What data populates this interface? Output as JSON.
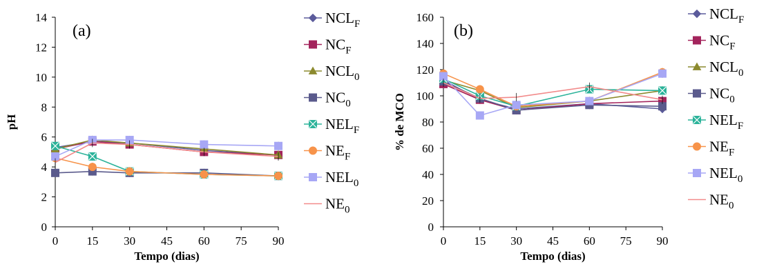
{
  "colors": {
    "NCLF": "#5b5b9b",
    "NCF": "#a3245c",
    "NCL0": "#8c8a2e",
    "NC0": "#5a5a8c",
    "NELF": "#2bb39a",
    "NEF": "#f7934a",
    "NEL0": "#a7a7f5",
    "NE0": "#f28a8a"
  },
  "chart_data": [
    {
      "type": "line",
      "panel_label": "(a)",
      "xlabel": "Tempo (dias)",
      "ylabel": "pH",
      "x_ticks": [
        0,
        15,
        30,
        45,
        60,
        75,
        90
      ],
      "y_ticks": [
        0,
        2,
        4,
        6,
        8,
        10,
        12,
        14
      ],
      "xlim": [
        0,
        90
      ],
      "ylim": [
        0,
        14
      ],
      "legend_position": "right",
      "x": [
        0,
        15,
        30,
        60,
        90
      ],
      "series": [
        {
          "key": "NCLF",
          "name": "NCL",
          "sub": "F",
          "marker": "diamond",
          "values": [
            5.3,
            5.7,
            5.6,
            5.1,
            4.8
          ]
        },
        {
          "key": "NCF",
          "name": "NC",
          "sub": "F",
          "marker": "square",
          "values": [
            5.2,
            5.7,
            5.5,
            5.0,
            4.8
          ]
        },
        {
          "key": "NCL0",
          "name": "NCL",
          "sub": "0",
          "marker": "triangle",
          "values": [
            5.2,
            5.8,
            5.6,
            5.2,
            4.8
          ]
        },
        {
          "key": "NC0",
          "name": "NC",
          "sub": "0",
          "marker": "square",
          "values": [
            3.6,
            3.7,
            3.6,
            3.6,
            3.4
          ]
        },
        {
          "key": "NELF",
          "name": "NEL",
          "sub": "F",
          "marker": "boxx",
          "values": [
            5.4,
            4.7,
            3.7,
            3.5,
            3.4
          ]
        },
        {
          "key": "NEF",
          "name": "NE",
          "sub": "F",
          "marker": "circle",
          "values": [
            4.6,
            4.0,
            3.7,
            3.5,
            3.4
          ]
        },
        {
          "key": "NEL0",
          "name": "NEL",
          "sub": "0",
          "marker": "square",
          "values": [
            4.7,
            5.8,
            5.8,
            5.5,
            5.4
          ]
        },
        {
          "key": "NE0",
          "name": "NE",
          "sub": "0",
          "marker": "none",
          "values": [
            4.3,
            5.6,
            5.5,
            5.0,
            4.7
          ]
        }
      ]
    },
    {
      "type": "line",
      "panel_label": "(b)",
      "xlabel": "Tempo (dias)",
      "ylabel": "% de MCO",
      "x_ticks": [
        0,
        15,
        30,
        45,
        60,
        75,
        90
      ],
      "y_ticks": [
        0,
        20,
        40,
        60,
        80,
        100,
        120,
        140,
        160
      ],
      "xlim": [
        0,
        90
      ],
      "ylim": [
        0,
        160
      ],
      "legend_position": "right",
      "x": [
        0,
        15,
        30,
        60,
        90
      ],
      "series": [
        {
          "key": "NCLF",
          "name": "NCL",
          "sub": "F",
          "marker": "diamond",
          "values": [
            112,
            97,
            90,
            94,
            90
          ]
        },
        {
          "key": "NCF",
          "name": "NC",
          "sub": "F",
          "marker": "square",
          "values": [
            109,
            97,
            89,
            94,
            96
          ]
        },
        {
          "key": "NCL0",
          "name": "NCL",
          "sub": "0",
          "marker": "triangle",
          "values": [
            112,
            104,
            91,
            96,
            104
          ]
        },
        {
          "key": "NC0",
          "name": "NC",
          "sub": "0",
          "marker": "square",
          "values": [
            111,
            98,
            89,
            93,
            92
          ]
        },
        {
          "key": "NELF",
          "name": "NEL",
          "sub": "F",
          "marker": "boxx",
          "values": [
            113,
            100,
            92,
            105,
            104
          ]
        },
        {
          "key": "NEF",
          "name": "NE",
          "sub": "F",
          "marker": "circle",
          "values": [
            117,
            105,
            92,
            96,
            118
          ]
        },
        {
          "key": "NEL0",
          "name": "NEL",
          "sub": "0",
          "marker": "square",
          "values": [
            115,
            85,
            93,
            96,
            117
          ]
        },
        {
          "key": "NE0",
          "name": "NE",
          "sub": "0",
          "marker": "none",
          "values": [
            110,
            98,
            99,
            107,
            97
          ]
        }
      ]
    }
  ]
}
